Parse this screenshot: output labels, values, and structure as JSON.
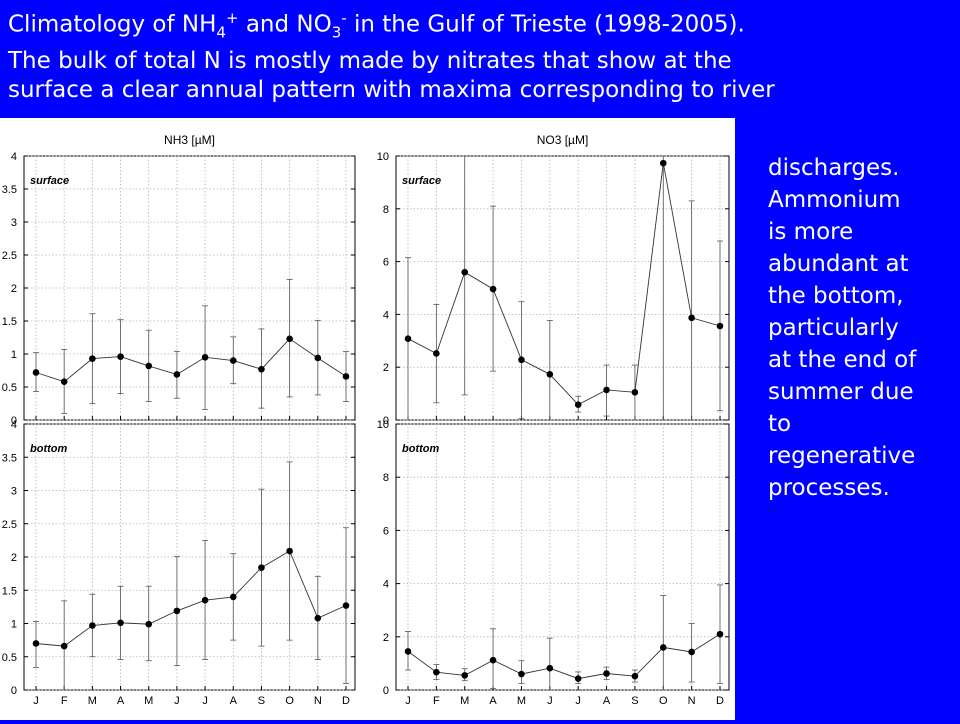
{
  "header": {
    "line1_a": "Climatology of NH",
    "line1_sub1": "4",
    "line1_sup1": "+",
    "line1_b": " and NO",
    "line1_sub2": "3",
    "line1_sup2": "-",
    "line1_c": " in the Gulf of Trieste (1998-2005).",
    "line2": "The bulk of total N is mostly made by nitrates that show at the",
    "line3": "surface a clear annual pattern with maxima corresponding to river"
  },
  "side_text": {
    "lines": [
      "discharges.",
      "Ammonium",
      "is more",
      "abundant at",
      "the bottom,",
      "particularly",
      "at the end of",
      "summer due",
      "to",
      "regenerative",
      "processes."
    ]
  },
  "chart_data": [
    {
      "type": "line",
      "title": "NH3 [µM]",
      "panel_label": "surface",
      "categories": [
        "J",
        "F",
        "M",
        "A",
        "M",
        "J",
        "J",
        "A",
        "S",
        "O",
        "N",
        "D"
      ],
      "ylim": [
        0,
        4
      ],
      "yticks": [
        0,
        0.5,
        1,
        1.5,
        2,
        2.5,
        3,
        3.5,
        4
      ],
      "ytick_labels": [
        "0",
        "0.5",
        "1",
        "1.5",
        "2",
        "2.5",
        "3",
        "3.5",
        "4"
      ],
      "grid": true,
      "values": [
        0.72,
        0.58,
        0.93,
        0.96,
        0.82,
        0.69,
        0.95,
        0.9,
        0.77,
        1.23,
        0.94,
        0.66
      ],
      "error_low": [
        0.43,
        0.1,
        0.25,
        0.4,
        0.28,
        0.33,
        0.16,
        0.55,
        0.18,
        0.35,
        0.38,
        0.28
      ],
      "error_high": [
        1.02,
        1.07,
        1.61,
        1.52,
        1.36,
        1.04,
        1.73,
        1.26,
        1.38,
        2.13,
        1.51,
        1.04
      ],
      "x_ticks_visible": false
    },
    {
      "type": "line",
      "title": "NO3 [µM]",
      "panel_label": "surface",
      "categories": [
        "J",
        "F",
        "M",
        "A",
        "M",
        "J",
        "J",
        "A",
        "S",
        "O",
        "N",
        "D"
      ],
      "ylim": [
        0,
        10
      ],
      "yticks": [
        0,
        2,
        4,
        6,
        8,
        10
      ],
      "ytick_labels": [
        "0",
        "2",
        "4",
        "6",
        "8",
        "10"
      ],
      "grid": true,
      "values": [
        3.08,
        2.52,
        5.6,
        4.96,
        2.28,
        1.73,
        0.58,
        1.14,
        1.05,
        9.73,
        3.87,
        3.56
      ],
      "error_low": [
        0,
        0.65,
        0.95,
        1.85,
        0.05,
        0,
        0.3,
        0.15,
        0,
        0,
        0,
        0.35
      ],
      "error_high": [
        6.15,
        4.38,
        10,
        8.1,
        4.48,
        3.77,
        0.9,
        2.08,
        2.08,
        10,
        8.3,
        6.78
      ],
      "x_ticks_visible": false
    },
    {
      "type": "line",
      "title": "",
      "panel_label": "bottom",
      "categories": [
        "J",
        "F",
        "M",
        "A",
        "M",
        "J",
        "J",
        "A",
        "S",
        "O",
        "N",
        "D"
      ],
      "ylim": [
        0,
        4
      ],
      "yticks": [
        0,
        0.5,
        1,
        1.5,
        2,
        2.5,
        3,
        3.5,
        4
      ],
      "ytick_labels": [
        "0",
        "0.5",
        "1",
        "1.5",
        "2",
        "2.5",
        "3",
        "3.5",
        "4"
      ],
      "grid": true,
      "values": [
        0.7,
        0.66,
        0.97,
        1.01,
        0.99,
        1.19,
        1.35,
        1.4,
        1.84,
        2.09,
        1.08,
        1.27
      ],
      "error_low": [
        0.34,
        0,
        0.5,
        0.46,
        0.44,
        0.37,
        0.46,
        0.75,
        0.66,
        0.75,
        0.46,
        0.1
      ],
      "error_high": [
        1.03,
        1.34,
        1.44,
        1.56,
        1.56,
        2.01,
        2.25,
        2.05,
        3.02,
        3.43,
        1.71,
        2.44
      ],
      "x_ticks_visible": true
    },
    {
      "type": "line",
      "title": "",
      "panel_label": "bottom",
      "categories": [
        "J",
        "F",
        "M",
        "A",
        "M",
        "J",
        "J",
        "A",
        "S",
        "O",
        "N",
        "D"
      ],
      "ylim": [
        0,
        10
      ],
      "yticks": [
        0,
        2,
        4,
        6,
        8,
        10
      ],
      "ytick_labels": [
        "0",
        "2",
        "4",
        "6",
        "8",
        "10"
      ],
      "grid": true,
      "values": [
        1.45,
        0.67,
        0.55,
        1.12,
        0.6,
        0.82,
        0.43,
        0.62,
        0.52,
        1.6,
        1.43,
        2.1
      ],
      "error_low": [
        0.75,
        0.4,
        0.35,
        0.05,
        0.25,
        0,
        0.25,
        0.4,
        0.3,
        0,
        0.3,
        0.25
      ],
      "error_high": [
        2.2,
        0.96,
        0.8,
        2.3,
        1.1,
        1.95,
        0.68,
        0.86,
        0.75,
        3.55,
        2.5,
        3.95
      ],
      "x_ticks_visible": true
    }
  ]
}
